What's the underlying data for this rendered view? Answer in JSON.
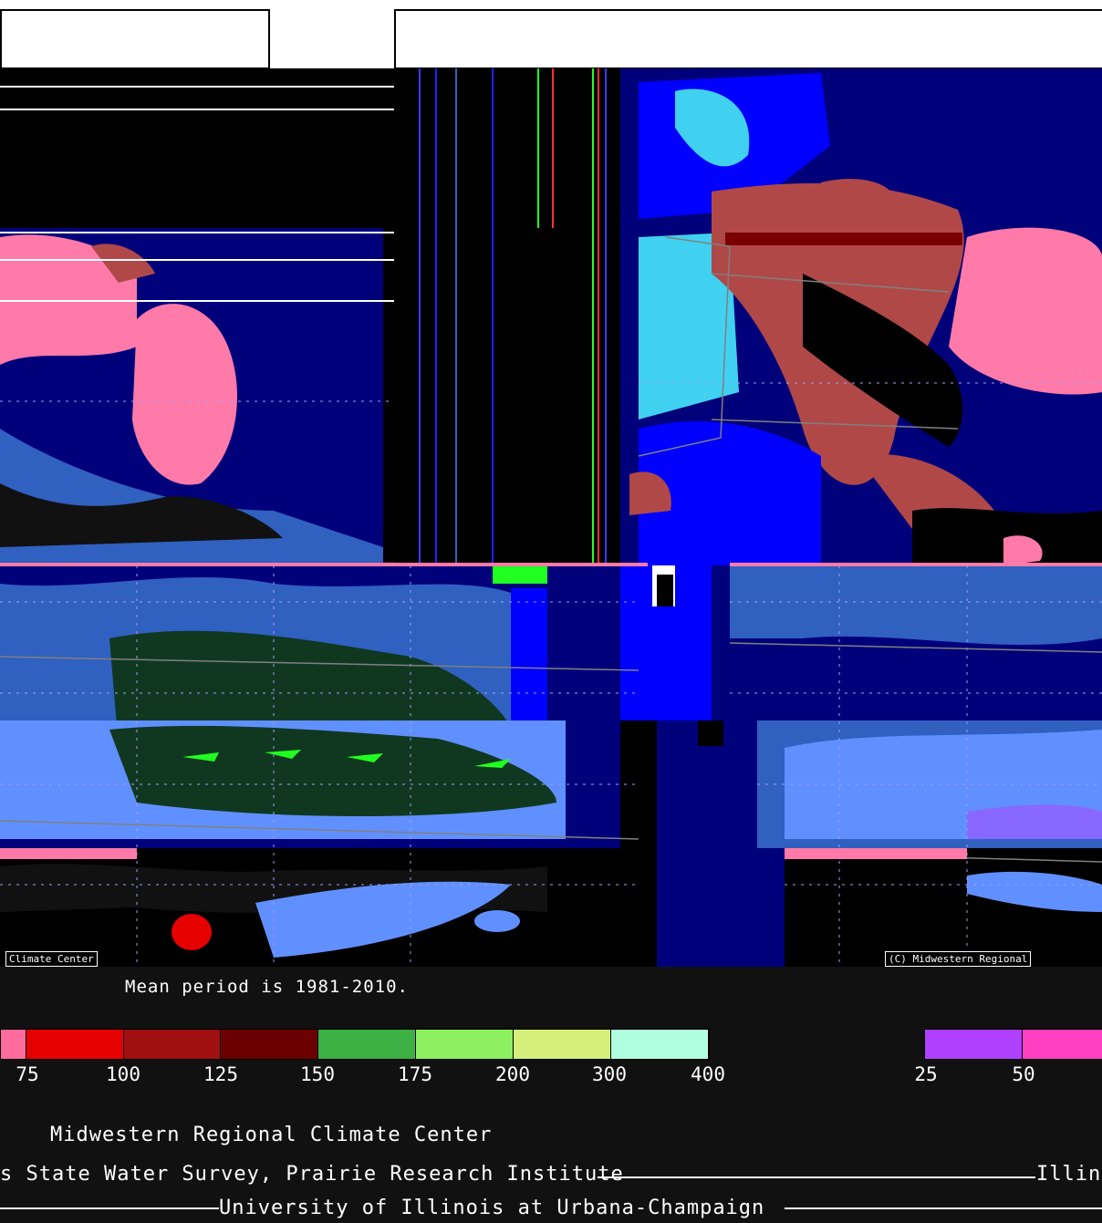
{
  "credits": {
    "left_label": "Climate Center",
    "right_label": "(C) Midwestern Regional"
  },
  "caption": "Mean period is 1981-2010.",
  "legend_left": {
    "colors": [
      "#ff6b9d",
      "#e60000",
      "#a01010",
      "#6b0000",
      "#3cb043",
      "#8cf060",
      "#d4f07a",
      "#b0ffe0"
    ],
    "ticks": [
      "75",
      "100",
      "125",
      "150",
      "175",
      "200",
      "300",
      "400"
    ]
  },
  "legend_right": {
    "colors": [
      "#b040ff",
      "#ff40c0"
    ],
    "ticks": [
      "25",
      "50"
    ]
  },
  "footer": {
    "center": "Midwestern Regional Climate Center",
    "survey": "s State Water Survey, Prairie Research Institute",
    "state_right": "Illinois",
    "university": "University of Illinois at Urbana-Champaign"
  },
  "colors": {
    "background": "#111111",
    "dark_blue": "#00007a",
    "blue": "#0000ff",
    "cyan": "#40d0f0",
    "steel_blue": "#3060c0",
    "light_blue": "#6090ff",
    "pink": "#ff7aa8",
    "brick": "#b04848",
    "dark_green": "#103820",
    "bright_green": "#20ff20"
  }
}
